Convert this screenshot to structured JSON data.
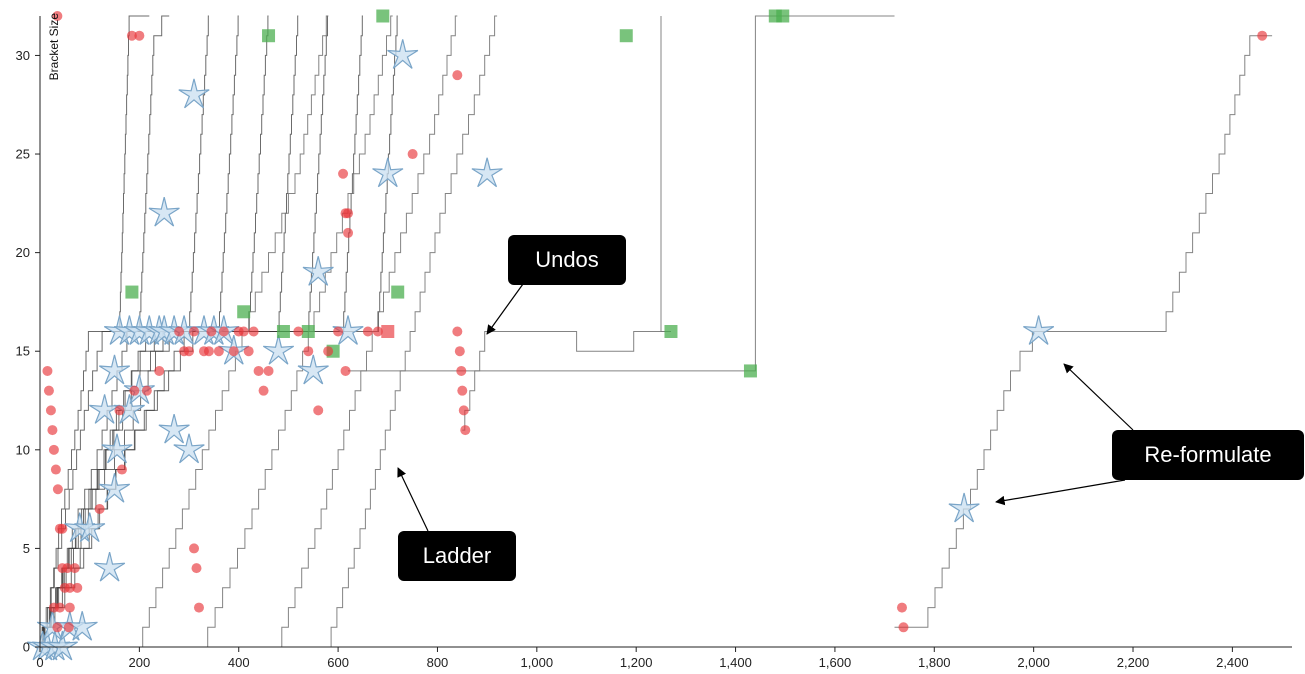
{
  "chart_data": {
    "type": "line",
    "title": "",
    "xlabel": "",
    "ylabel": "Bracket Size",
    "xlim": [
      0,
      2520
    ],
    "ylim": [
      0,
      32
    ],
    "x_ticks": [
      0,
      200,
      400,
      600,
      800,
      1000,
      1200,
      1400,
      1600,
      1800,
      2000,
      2200,
      2400
    ],
    "x_tick_labels": [
      "0",
      "200",
      "400",
      "600",
      "800",
      "1,000",
      "1,200",
      "1,400",
      "1,600",
      "1,800",
      "2,000",
      "2,200",
      "2,400"
    ],
    "y_ticks": [
      0,
      5,
      10,
      15,
      20,
      25,
      30
    ],
    "y_tick_labels": [
      "0",
      "5",
      "10",
      "15",
      "20",
      "25",
      "30"
    ],
    "grid": false,
    "legend": "none",
    "colors": {
      "line": "#777777",
      "line_dark": "#222222",
      "undo": "#e8363a",
      "final": "#4caf50",
      "star_fill": "#c9dff0",
      "star_stroke": "#7aa5c8",
      "callout_bg": "#000000"
    },
    "series": [
      {
        "values": [
          [
            0,
            0
          ],
          [
            20,
            2
          ],
          [
            40,
            6
          ],
          [
            60,
            9
          ],
          [
            80,
            12
          ],
          [
            100,
            16
          ],
          [
            160,
            16
          ],
          [
            180,
            32
          ],
          [
            220,
            32
          ]
        ]
      },
      {
        "values": [
          [
            0,
            0
          ],
          [
            25,
            3
          ],
          [
            55,
            7
          ],
          [
            85,
            11
          ],
          [
            110,
            14
          ],
          [
            130,
            16
          ],
          [
            200,
            16
          ],
          [
            230,
            31
          ],
          [
            260,
            32
          ]
        ]
      },
      {
        "values": [
          [
            0,
            0
          ],
          [
            30,
            2
          ],
          [
            70,
            6
          ],
          [
            110,
            9
          ],
          [
            150,
            13
          ],
          [
            180,
            16
          ],
          [
            300,
            16
          ],
          [
            340,
            32
          ]
        ]
      },
      {
        "values": [
          [
            0,
            0
          ],
          [
            40,
            3
          ],
          [
            90,
            7
          ],
          [
            140,
            10
          ],
          [
            190,
            14
          ],
          [
            220,
            16
          ],
          [
            360,
            16
          ],
          [
            400,
            32
          ]
        ]
      },
      {
        "values": [
          [
            0,
            0
          ],
          [
            50,
            4
          ],
          [
            110,
            8
          ],
          [
            160,
            12
          ],
          [
            210,
            15
          ],
          [
            250,
            16
          ],
          [
            420,
            16
          ],
          [
            460,
            32
          ]
        ]
      },
      {
        "values": [
          [
            0,
            0
          ],
          [
            60,
            4
          ],
          [
            120,
            8
          ],
          [
            180,
            11
          ],
          [
            240,
            15
          ],
          [
            280,
            16
          ],
          [
            480,
            16
          ],
          [
            520,
            32
          ]
        ]
      },
      {
        "values": [
          [
            0,
            0
          ],
          [
            70,
            5
          ],
          [
            140,
            10
          ],
          [
            210,
            14
          ],
          [
            260,
            16
          ],
          [
            540,
            16
          ],
          [
            580,
            32
          ]
        ]
      },
      {
        "values": [
          [
            0,
            0
          ],
          [
            80,
            4
          ],
          [
            160,
            9
          ],
          [
            240,
            13
          ],
          [
            300,
            16
          ],
          [
            610,
            16
          ],
          [
            650,
            32
          ]
        ]
      },
      {
        "values": [
          [
            0,
            0
          ],
          [
            90,
            5
          ],
          [
            180,
            10
          ],
          [
            270,
            14
          ],
          [
            320,
            16
          ],
          [
            680,
            16
          ],
          [
            720,
            32
          ]
        ]
      },
      {
        "values": [
          [
            200,
            0
          ],
          [
            280,
            6
          ],
          [
            360,
            12
          ],
          [
            440,
            18
          ],
          [
            520,
            24
          ],
          [
            580,
            32
          ]
        ]
      },
      {
        "values": [
          [
            330,
            0
          ],
          [
            420,
            6
          ],
          [
            500,
            12
          ],
          [
            580,
            19
          ],
          [
            660,
            26
          ],
          [
            710,
            32
          ]
        ]
      },
      {
        "values": [
          [
            480,
            0
          ],
          [
            560,
            6
          ],
          [
            640,
            13
          ],
          [
            720,
            20
          ],
          [
            790,
            26
          ],
          [
            840,
            32
          ]
        ]
      },
      {
        "values": [
          [
            580,
            0
          ],
          [
            650,
            6
          ],
          [
            730,
            14
          ],
          [
            810,
            22
          ],
          [
            880,
            28
          ],
          [
            920,
            32
          ]
        ]
      },
      {
        "values": [
          [
            850,
            11
          ],
          [
            900,
            16
          ],
          [
            1040,
            16
          ],
          [
            1120,
            15
          ],
          [
            1270,
            16
          ]
        ]
      },
      {
        "values": [
          [
            1720,
            1
          ],
          [
            1780,
            1
          ],
          [
            1880,
            8
          ],
          [
            1960,
            14
          ],
          [
            2010,
            16
          ],
          [
            2260,
            16
          ],
          [
            2380,
            25
          ],
          [
            2440,
            31
          ],
          [
            2480,
            31
          ]
        ]
      },
      {
        "values": [
          [
            620,
            14
          ],
          [
            1440,
            14
          ],
          [
            1440,
            32
          ],
          [
            1720,
            32
          ]
        ]
      },
      {
        "values": [
          [
            1250,
            32
          ],
          [
            1250,
            16
          ],
          [
            1270,
            16
          ]
        ]
      }
    ],
    "undo_points": [
      {
        "x": 35,
        "y": 32
      },
      {
        "x": 185,
        "y": 31
      },
      {
        "x": 200,
        "y": 31
      },
      {
        "x": 15,
        "y": 14
      },
      {
        "x": 18,
        "y": 13
      },
      {
        "x": 22,
        "y": 12
      },
      {
        "x": 25,
        "y": 11
      },
      {
        "x": 28,
        "y": 10
      },
      {
        "x": 32,
        "y": 9
      },
      {
        "x": 36,
        "y": 8
      },
      {
        "x": 40,
        "y": 6
      },
      {
        "x": 45,
        "y": 6
      },
      {
        "x": 45,
        "y": 4
      },
      {
        "x": 50,
        "y": 3
      },
      {
        "x": 55,
        "y": 4
      },
      {
        "x": 60,
        "y": 3
      },
      {
        "x": 70,
        "y": 4
      },
      {
        "x": 75,
        "y": 3
      },
      {
        "x": 28,
        "y": 2
      },
      {
        "x": 40,
        "y": 2
      },
      {
        "x": 60,
        "y": 2
      },
      {
        "x": 35,
        "y": 1
      },
      {
        "x": 58,
        "y": 1
      },
      {
        "x": 120,
        "y": 7
      },
      {
        "x": 160,
        "y": 12
      },
      {
        "x": 165,
        "y": 9
      },
      {
        "x": 190,
        "y": 13
      },
      {
        "x": 215,
        "y": 13
      },
      {
        "x": 240,
        "y": 14
      },
      {
        "x": 280,
        "y": 16
      },
      {
        "x": 290,
        "y": 15
      },
      {
        "x": 300,
        "y": 15
      },
      {
        "x": 310,
        "y": 16
      },
      {
        "x": 330,
        "y": 15
      },
      {
        "x": 340,
        "y": 15
      },
      {
        "x": 345,
        "y": 16
      },
      {
        "x": 360,
        "y": 15
      },
      {
        "x": 370,
        "y": 16
      },
      {
        "x": 390,
        "y": 15
      },
      {
        "x": 400,
        "y": 16
      },
      {
        "x": 410,
        "y": 16
      },
      {
        "x": 420,
        "y": 15
      },
      {
        "x": 430,
        "y": 16
      },
      {
        "x": 440,
        "y": 14
      },
      {
        "x": 450,
        "y": 13
      },
      {
        "x": 460,
        "y": 14
      },
      {
        "x": 520,
        "y": 16
      },
      {
        "x": 540,
        "y": 15
      },
      {
        "x": 580,
        "y": 15
      },
      {
        "x": 560,
        "y": 12
      },
      {
        "x": 600,
        "y": 16
      },
      {
        "x": 615,
        "y": 14
      },
      {
        "x": 610,
        "y": 24
      },
      {
        "x": 615,
        "y": 22
      },
      {
        "x": 620,
        "y": 22
      },
      {
        "x": 620,
        "y": 21
      },
      {
        "x": 750,
        "y": 25
      },
      {
        "x": 840,
        "y": 29
      },
      {
        "x": 310,
        "y": 5
      },
      {
        "x": 315,
        "y": 4
      },
      {
        "x": 320,
        "y": 2
      },
      {
        "x": 660,
        "y": 16
      },
      {
        "x": 680,
        "y": 16
      },
      {
        "x": 840,
        "y": 16
      },
      {
        "x": 845,
        "y": 15
      },
      {
        "x": 848,
        "y": 14
      },
      {
        "x": 850,
        "y": 13
      },
      {
        "x": 853,
        "y": 12
      },
      {
        "x": 856,
        "y": 11
      },
      {
        "x": 1735,
        "y": 2
      },
      {
        "x": 1738,
        "y": 1
      },
      {
        "x": 2460,
        "y": 31
      }
    ],
    "final_points": [
      {
        "x": 460,
        "y": 31
      },
      {
        "x": 690,
        "y": 32
      },
      {
        "x": 1180,
        "y": 31
      },
      {
        "x": 1480,
        "y": 32
      },
      {
        "x": 1495,
        "y": 32
      },
      {
        "x": 185,
        "y": 18
      },
      {
        "x": 410,
        "y": 17
      },
      {
        "x": 720,
        "y": 18
      },
      {
        "x": 490,
        "y": 16
      },
      {
        "x": 540,
        "y": 16
      },
      {
        "x": 590,
        "y": 15
      },
      {
        "x": 1270,
        "y": 16
      },
      {
        "x": 1430,
        "y": 14
      }
    ],
    "undo_square_points": [
      {
        "x": 700,
        "y": 16
      }
    ],
    "reformulate_points": [
      {
        "x": 5,
        "y": 0
      },
      {
        "x": 15,
        "y": 0
      },
      {
        "x": 25,
        "y": 1
      },
      {
        "x": 30,
        "y": 0
      },
      {
        "x": 45,
        "y": 0
      },
      {
        "x": 60,
        "y": 1
      },
      {
        "x": 85,
        "y": 1
      },
      {
        "x": 80,
        "y": 6
      },
      {
        "x": 100,
        "y": 6
      },
      {
        "x": 140,
        "y": 4
      },
      {
        "x": 150,
        "y": 8
      },
      {
        "x": 130,
        "y": 12
      },
      {
        "x": 150,
        "y": 14
      },
      {
        "x": 180,
        "y": 12
      },
      {
        "x": 200,
        "y": 13
      },
      {
        "x": 155,
        "y": 10
      },
      {
        "x": 160,
        "y": 16
      },
      {
        "x": 180,
        "y": 16
      },
      {
        "x": 200,
        "y": 16
      },
      {
        "x": 220,
        "y": 16
      },
      {
        "x": 240,
        "y": 16
      },
      {
        "x": 250,
        "y": 16
      },
      {
        "x": 270,
        "y": 16
      },
      {
        "x": 290,
        "y": 16
      },
      {
        "x": 330,
        "y": 16
      },
      {
        "x": 350,
        "y": 16
      },
      {
        "x": 370,
        "y": 16
      },
      {
        "x": 390,
        "y": 15
      },
      {
        "x": 480,
        "y": 15
      },
      {
        "x": 250,
        "y": 22
      },
      {
        "x": 270,
        "y": 11
      },
      {
        "x": 300,
        "y": 10
      },
      {
        "x": 310,
        "y": 28
      },
      {
        "x": 560,
        "y": 19
      },
      {
        "x": 550,
        "y": 14
      },
      {
        "x": 620,
        "y": 16
      },
      {
        "x": 730,
        "y": 30
      },
      {
        "x": 700,
        "y": 24
      },
      {
        "x": 900,
        "y": 24
      },
      {
        "x": 2010,
        "y": 16
      },
      {
        "x": 1860,
        "y": 7
      }
    ],
    "annotations": [
      {
        "text": "Undos"
      },
      {
        "text": "Ladder"
      },
      {
        "text": "Re-formulate"
      }
    ]
  }
}
